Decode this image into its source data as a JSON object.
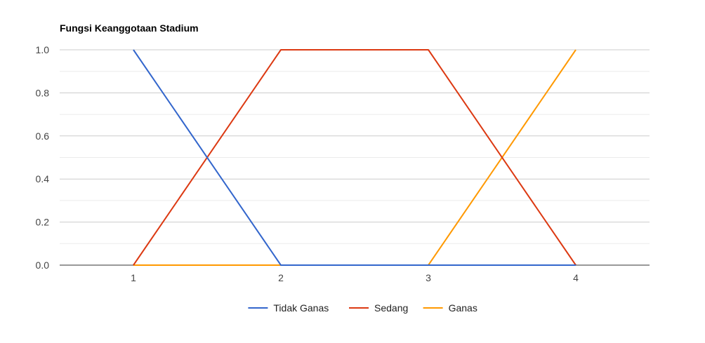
{
  "chart_data": {
    "type": "line",
    "title": "Fungsi Keanggotaan Stadium",
    "xlabel": "",
    "ylabel": "",
    "x": [
      1,
      2,
      3,
      4
    ],
    "xlim": [
      0.5,
      4.5
    ],
    "ylim": [
      0,
      1
    ],
    "y_ticks": [
      "0.0",
      "0.2",
      "0.4",
      "0.6",
      "0.8",
      "1.0"
    ],
    "x_ticks": [
      "1",
      "2",
      "3",
      "4"
    ],
    "grid": true,
    "legend_position": "bottom",
    "series": [
      {
        "name": "Tidak Ganas",
        "color": "#3366cc",
        "values": [
          1,
          0,
          0,
          0
        ]
      },
      {
        "name": "Sedang",
        "color": "#dc3912",
        "values": [
          0,
          1,
          1,
          0
        ]
      },
      {
        "name": "Ganas",
        "color": "#ff9900",
        "values": [
          0,
          0,
          0,
          1
        ]
      }
    ]
  }
}
